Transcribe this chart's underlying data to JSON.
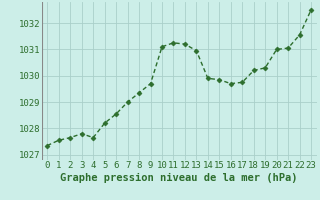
{
  "x": [
    0,
    1,
    2,
    3,
    4,
    5,
    6,
    7,
    8,
    9,
    10,
    11,
    12,
    13,
    14,
    15,
    16,
    17,
    18,
    19,
    20,
    21,
    22,
    23
  ],
  "y": [
    1027.35,
    1027.55,
    1027.65,
    1027.8,
    1027.65,
    1028.2,
    1028.55,
    1029.0,
    1029.35,
    1029.7,
    1031.1,
    1031.25,
    1031.2,
    1030.95,
    1029.9,
    1029.85,
    1029.7,
    1029.75,
    1030.2,
    1030.3,
    1031.0,
    1031.05,
    1031.55,
    1032.5
  ],
  "line_color": "#2d6e2d",
  "marker": "D",
  "marker_size": 2.5,
  "linewidth": 1.0,
  "bg_color": "#cceee8",
  "grid_color": "#aacfca",
  "xlabel": "Graphe pression niveau de la mer (hPa)",
  "xlabel_fontsize": 7.5,
  "xlabel_color": "#2d6e2d",
  "tick_label_color": "#2d6e2d",
  "tick_fontsize": 6.5,
  "ylim": [
    1026.8,
    1032.8
  ],
  "yticks": [
    1027,
    1028,
    1029,
    1030,
    1031,
    1032
  ],
  "xticks": [
    0,
    1,
    2,
    3,
    4,
    5,
    6,
    7,
    8,
    9,
    10,
    11,
    12,
    13,
    14,
    15,
    16,
    17,
    18,
    19,
    20,
    21,
    22,
    23
  ]
}
